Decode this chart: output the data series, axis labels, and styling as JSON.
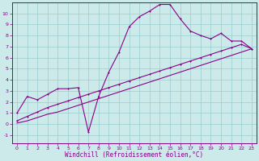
{
  "xlabel": "Windchill (Refroidissement éolien,°C)",
  "bg_color": "#cceaea",
  "line_color": "#880088",
  "grid_color": "#99cccc",
  "xlim": [
    -0.5,
    23.5
  ],
  "ylim": [
    -1.7,
    11.0
  ],
  "xticks": [
    0,
    1,
    2,
    3,
    4,
    5,
    6,
    7,
    8,
    9,
    10,
    11,
    12,
    13,
    14,
    15,
    16,
    17,
    18,
    19,
    20,
    21,
    22,
    23
  ],
  "yticks": [
    -1,
    0,
    1,
    2,
    3,
    4,
    5,
    6,
    7,
    8,
    9,
    10
  ],
  "line1_x": [
    0,
    1,
    2,
    3,
    4,
    5,
    6,
    7,
    8,
    9,
    10,
    11,
    12,
    13,
    14,
    15,
    16,
    17,
    18,
    19,
    20,
    21,
    22,
    23
  ],
  "line1_y": [
    1.0,
    2.5,
    2.2,
    2.7,
    3.2,
    3.2,
    3.3,
    -0.7,
    2.5,
    4.7,
    6.5,
    8.8,
    9.7,
    10.2,
    10.8,
    10.8,
    9.5,
    8.4,
    8.0,
    7.7,
    8.2,
    7.5,
    7.5,
    6.8
  ],
  "line2_x": [
    0,
    1,
    2,
    3,
    4,
    5,
    6,
    7,
    8,
    9,
    10,
    11,
    12,
    13,
    14,
    15,
    16,
    17,
    18,
    19,
    20,
    21,
    22,
    23
  ],
  "line2_y": [
    0.3,
    0.7,
    1.1,
    1.5,
    1.8,
    2.1,
    2.4,
    2.7,
    3.0,
    3.3,
    3.6,
    3.9,
    4.2,
    4.5,
    4.8,
    5.1,
    5.4,
    5.7,
    6.0,
    6.3,
    6.6,
    6.9,
    7.2,
    6.8
  ],
  "line3_x": [
    0,
    1,
    2,
    3,
    4,
    5,
    6,
    7,
    8,
    9,
    10,
    11,
    12,
    13,
    14,
    15,
    16,
    17,
    18,
    19,
    20,
    21,
    22,
    23
  ],
  "line3_y": [
    0.1,
    0.3,
    0.6,
    0.9,
    1.1,
    1.4,
    1.7,
    2.0,
    2.3,
    2.6,
    2.9,
    3.2,
    3.5,
    3.8,
    4.1,
    4.4,
    4.7,
    5.0,
    5.3,
    5.6,
    5.9,
    6.2,
    6.5,
    6.8
  ],
  "tick_fontsize": 4.5,
  "xlabel_fontsize": 5.5
}
